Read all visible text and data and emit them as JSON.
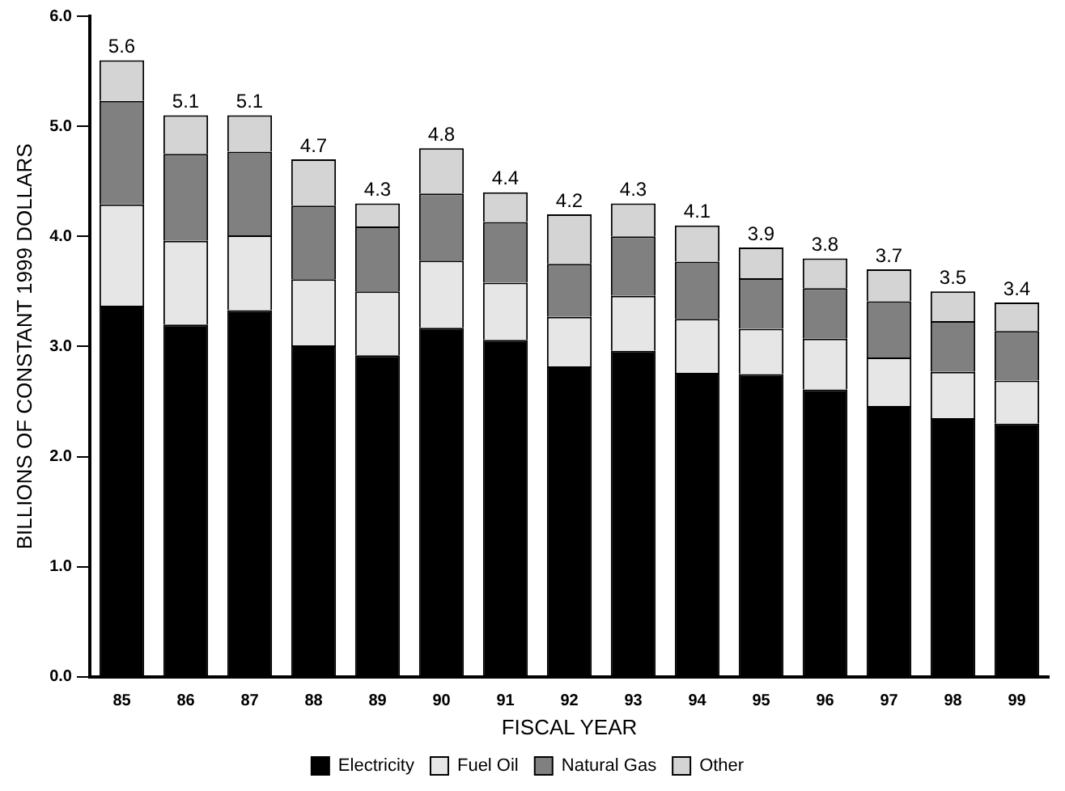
{
  "chart_data": {
    "type": "bar",
    "stacked": true,
    "xlabel": "FISCAL YEAR",
    "ylabel": "BILLIONS OF CONSTANT 1999 DOLLARS",
    "categories": [
      "85",
      "86",
      "87",
      "88",
      "89",
      "90",
      "91",
      "92",
      "93",
      "94",
      "95",
      "96",
      "97",
      "98",
      "99"
    ],
    "series": [
      {
        "name": "Electricity",
        "color": "#000000",
        "values": [
          3.37,
          3.2,
          3.33,
          3.01,
          2.92,
          3.17,
          3.06,
          2.82,
          2.96,
          2.76,
          2.75,
          2.61,
          2.46,
          2.35,
          2.3
        ]
      },
      {
        "name": "Fuel Oil",
        "color": "#e6e6e6",
        "values": [
          0.92,
          0.76,
          0.68,
          0.6,
          0.58,
          0.61,
          0.52,
          0.45,
          0.5,
          0.49,
          0.41,
          0.46,
          0.44,
          0.42,
          0.39
        ]
      },
      {
        "name": "Natural Gas",
        "color": "#808080",
        "values": [
          0.94,
          0.79,
          0.76,
          0.67,
          0.59,
          0.61,
          0.55,
          0.48,
          0.54,
          0.52,
          0.46,
          0.46,
          0.51,
          0.46,
          0.45
        ]
      },
      {
        "name": "Other",
        "color": "#d4d4d4",
        "values": [
          0.37,
          0.35,
          0.33,
          0.42,
          0.21,
          0.41,
          0.27,
          0.45,
          0.3,
          0.33,
          0.28,
          0.27,
          0.29,
          0.27,
          0.26
        ]
      }
    ],
    "totals": [
      "5.6",
      "5.1",
      "5.1",
      "4.7",
      "4.3",
      "4.8",
      "4.4",
      "4.2",
      "4.3",
      "4.1",
      "3.9",
      "3.8",
      "3.7",
      "3.5",
      "3.4"
    ],
    "ylim": [
      0,
      6
    ],
    "yticks": [
      {
        "value": 0,
        "label": "0.0"
      },
      {
        "value": 1,
        "label": "1.0"
      },
      {
        "value": 2,
        "label": "2.0"
      },
      {
        "value": 3,
        "label": "3.0"
      },
      {
        "value": 4,
        "label": "4.0"
      },
      {
        "value": 5,
        "label": "5.0"
      },
      {
        "value": 6,
        "label": "6.0"
      }
    ],
    "grid": false,
    "legend": "bottom"
  }
}
